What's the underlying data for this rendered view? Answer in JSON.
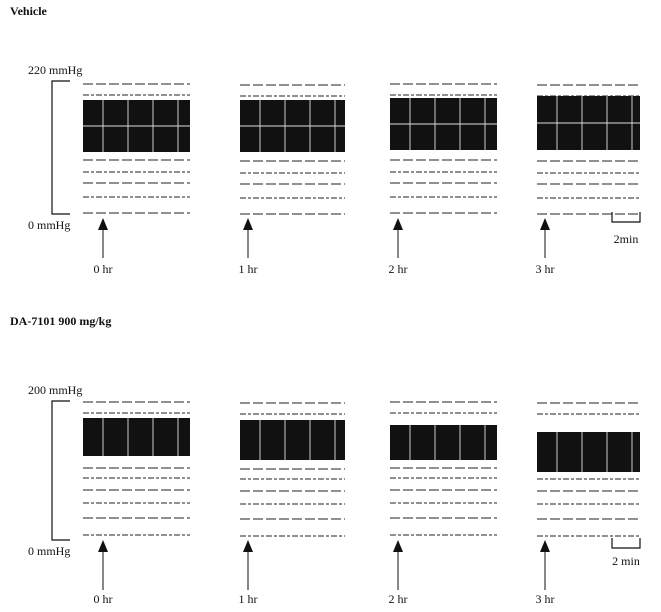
{
  "panels": [
    {
      "title": "Vehicle",
      "scale_top": "220 mmHg",
      "scale_bottom": "0 mmHg",
      "time_labels": [
        "0 hr",
        "1 hr",
        "2 hr",
        "3 hr"
      ],
      "scale_bar": "2min"
    },
    {
      "title": "DA-7101 900 mg/kg",
      "scale_top": "200 mmHg",
      "scale_bottom": "0 mmHg",
      "time_labels": [
        "0 hr",
        "1 hr",
        "2 hr",
        "3 hr"
      ],
      "scale_bar": "2 min"
    }
  ]
}
